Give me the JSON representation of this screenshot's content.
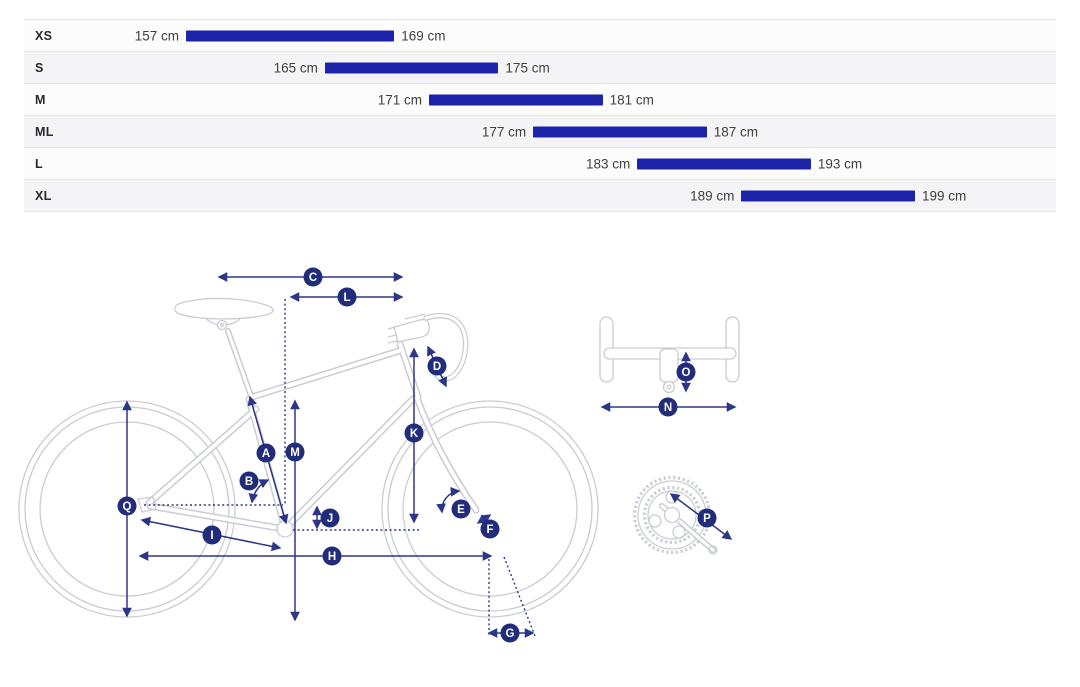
{
  "size_table": {
    "unit": "cm",
    "rows": [
      {
        "size": "XS",
        "min_cm": 157,
        "max_cm": 169,
        "min_label": "157 cm",
        "max_label": "169 cm"
      },
      {
        "size": "S",
        "min_cm": 165,
        "max_cm": 175,
        "min_label": "165 cm",
        "max_label": "175 cm"
      },
      {
        "size": "M",
        "min_cm": 171,
        "max_cm": 181,
        "min_label": "171 cm",
        "max_label": "181 cm"
      },
      {
        "size": "ML",
        "min_cm": 177,
        "max_cm": 187,
        "min_label": "177 cm",
        "max_label": "187 cm"
      },
      {
        "size": "L",
        "min_cm": 183,
        "max_cm": 193,
        "min_label": "183 cm",
        "max_label": "193 cm"
      },
      {
        "size": "XL",
        "min_cm": 189,
        "max_cm": 199,
        "min_label": "189 cm",
        "max_label": "199 cm"
      }
    ]
  },
  "chart_data": {
    "type": "bar",
    "subtype": "horizontal-range",
    "categories": [
      "XS",
      "S",
      "M",
      "ML",
      "L",
      "XL"
    ],
    "series": [
      {
        "name": "rider_height_min_cm",
        "values": [
          157,
          165,
          171,
          177,
          183,
          189
        ]
      },
      {
        "name": "rider_height_max_cm",
        "values": [
          169,
          175,
          181,
          187,
          193,
          199
        ]
      }
    ],
    "unit": "cm",
    "value_axis_range": [
      157,
      199
    ],
    "legend": "none",
    "grid": false
  },
  "diagram": {
    "labels": {
      "a": "A",
      "b": "B",
      "c": "C",
      "d": "D",
      "e": "E",
      "f": "F",
      "g": "G",
      "h": "H",
      "i": "I",
      "j": "J",
      "k": "K",
      "l": "L",
      "m": "M",
      "n": "N",
      "o": "O",
      "p": "P",
      "q": "Q"
    }
  },
  "colors": {
    "bar": "#1c25a9",
    "annotation": "#2b3688",
    "label_circle": "#212c7a",
    "bike_line": "#c9cdd3",
    "row_base": "#fcfcfd",
    "row_alt": "#f4f4f6",
    "row_border": "#e4e4e7"
  }
}
